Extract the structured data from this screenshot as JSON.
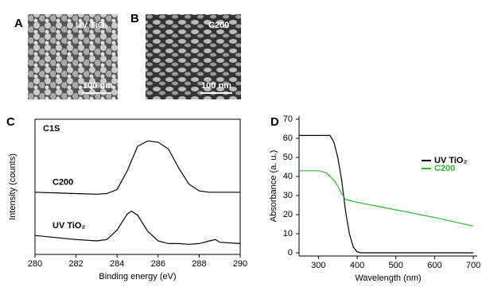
{
  "panels": [
    {
      "label": "A",
      "caption": "UV TiO₂",
      "scale_bar": "100 nm"
    },
    {
      "label": "B",
      "caption": "C200",
      "scale_bar": "100 nm"
    }
  ],
  "chart_data": [
    {
      "type": "line",
      "panel_label": "C",
      "annotation": "C1S",
      "xlabel": "Binding energy (eV)",
      "ylabel": "Intensity (counts)",
      "xlim": [
        280,
        290
      ],
      "xticks": [
        280,
        282,
        284,
        286,
        288,
        290
      ],
      "ylim": [
        0,
        100
      ],
      "series": [
        {
          "name": "C200",
          "color": "#000000",
          "x": [
            280,
            281,
            282,
            283,
            283.5,
            284,
            284.5,
            285,
            285.5,
            286,
            286.5,
            287,
            287.5,
            288,
            288.5,
            289,
            290
          ],
          "values": [
            46,
            45.5,
            45,
            44.5,
            45,
            48,
            62,
            80,
            84,
            83,
            78,
            64,
            52,
            47,
            46,
            46,
            46
          ]
        },
        {
          "name": "UV TiO₂",
          "color": "#000000",
          "x": [
            280,
            281,
            282,
            283,
            283.5,
            284,
            284.5,
            284.7,
            285,
            285.5,
            286,
            286.5,
            287,
            287.5,
            288,
            288.5,
            288.8,
            289,
            290
          ],
          "values": [
            14,
            12.5,
            11,
            10,
            11,
            18,
            30,
            32,
            29,
            17,
            10,
            8,
            8,
            7.5,
            8,
            10,
            11,
            9,
            8
          ]
        }
      ]
    },
    {
      "type": "line",
      "panel_label": "D",
      "xlabel": "Wavelength (nm)",
      "ylabel": "Absorbance (a. u.)",
      "xlim": [
        250,
        710
      ],
      "xticks": [
        300,
        400,
        500,
        600,
        700
      ],
      "ylim": [
        0,
        70
      ],
      "yticks": [
        0,
        10,
        20,
        30,
        40,
        50,
        60,
        70
      ],
      "legend": "upper right",
      "series": [
        {
          "name": "UV TiO₂",
          "color": "#000000",
          "x": [
            250,
            300,
            330,
            340,
            350,
            360,
            370,
            380,
            390,
            400,
            410,
            500,
            600,
            700
          ],
          "values": [
            61.5,
            61.5,
            61.5,
            58,
            50,
            38,
            22,
            10,
            3,
            0.5,
            0,
            0,
            0,
            0
          ]
        },
        {
          "name": "C200",
          "color": "#2db82d",
          "x": [
            250,
            300,
            320,
            340,
            350,
            360,
            370,
            400,
            500,
            600,
            700
          ],
          "values": [
            43,
            43,
            42,
            38,
            35,
            31,
            28,
            26.5,
            22.5,
            18.5,
            14
          ]
        }
      ]
    }
  ]
}
